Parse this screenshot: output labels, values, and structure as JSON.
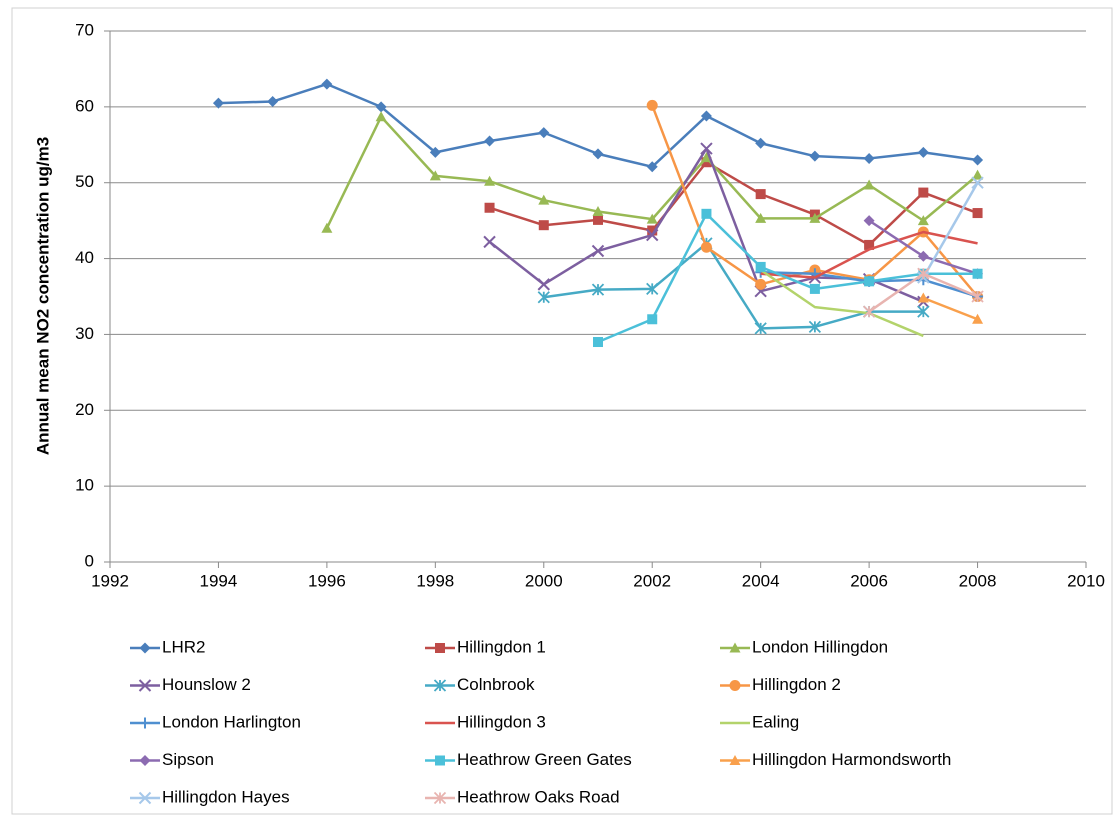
{
  "chart_data": {
    "type": "line",
    "y_label": "Annual mean NO2 concentration ug/m3",
    "x": [
      1994,
      1995,
      1996,
      1997,
      1998,
      1999,
      2000,
      2001,
      2002,
      2003,
      2004,
      2005,
      2006,
      2007,
      2008
    ],
    "xlim": [
      1992,
      2010
    ],
    "xticks": [
      1992,
      1994,
      1996,
      1998,
      2000,
      2002,
      2004,
      2006,
      2008,
      2010
    ],
    "ylim": [
      0,
      70
    ],
    "yticks": [
      0,
      10,
      20,
      30,
      40,
      50,
      60,
      70
    ],
    "grid": true,
    "legend": "bottom",
    "series": [
      {
        "name": "LHR2",
        "color": "#4a7ebb",
        "marker": "diamond",
        "values": [
          60.5,
          60.7,
          63,
          60,
          54,
          55.5,
          56.6,
          53.8,
          52.1,
          58.8,
          55.2,
          53.5,
          53.2,
          54,
          53
        ]
      },
      {
        "name": "Hillingdon 1",
        "color": "#be4b48",
        "marker": "square",
        "values": [
          null,
          null,
          null,
          null,
          null,
          46.7,
          44.4,
          45.1,
          43.7,
          52.7,
          48.5,
          45.8,
          41.8,
          48.7,
          46
        ]
      },
      {
        "name": "London Hillingdon",
        "color": "#98b954",
        "marker": "triangle",
        "values": [
          null,
          null,
          44,
          58.7,
          50.9,
          50.2,
          47.7,
          46.2,
          45.2,
          53.3,
          45.3,
          45.3,
          49.7,
          45,
          51
        ]
      },
      {
        "name": "Hounslow 2",
        "color": "#7d5fa0",
        "marker": "x",
        "values": [
          null,
          null,
          null,
          null,
          null,
          42.2,
          36.6,
          41,
          43.1,
          54.5,
          35.7,
          37.5,
          37.3,
          34.3,
          null
        ]
      },
      {
        "name": "Colnbrook",
        "color": "#46aac5",
        "marker": "star",
        "values": [
          null,
          null,
          null,
          null,
          null,
          null,
          34.9,
          35.9,
          36,
          42,
          30.8,
          31,
          33,
          33,
          null
        ]
      },
      {
        "name": "Hillingdon 2",
        "color": "#f79646",
        "marker": "circle",
        "values": [
          null,
          null,
          null,
          null,
          null,
          null,
          null,
          null,
          60.2,
          41.5,
          36.6,
          38.5,
          37.2,
          43.5,
          35
        ]
      },
      {
        "name": "London Harlington",
        "color": "#4f8fd0",
        "marker": "plus",
        "values": [
          null,
          null,
          null,
          null,
          null,
          null,
          null,
          null,
          null,
          null,
          38.2,
          38,
          37,
          37.2,
          35
        ]
      },
      {
        "name": "Hillingdon 3",
        "color": "#d9534f",
        "marker": "none",
        "values": [
          null,
          null,
          null,
          null,
          null,
          null,
          null,
          null,
          null,
          null,
          38,
          37.5,
          41.2,
          43.5,
          42
        ]
      },
      {
        "name": "Ealing",
        "color": "#b3d36b",
        "marker": "none",
        "values": [
          null,
          null,
          null,
          null,
          null,
          null,
          null,
          null,
          null,
          null,
          38.5,
          33.6,
          32.8,
          29.8,
          null
        ]
      },
      {
        "name": "Sipson",
        "color": "#8c6bb1",
        "marker": "diamond",
        "values": [
          null,
          null,
          null,
          null,
          null,
          null,
          null,
          null,
          null,
          null,
          null,
          null,
          45,
          40.3,
          38
        ]
      },
      {
        "name": "Heathrow Green Gates",
        "color": "#4bc0d9",
        "marker": "square",
        "values": [
          null,
          null,
          null,
          null,
          null,
          null,
          null,
          29,
          32,
          45.9,
          38.9,
          36,
          37,
          38,
          38
        ]
      },
      {
        "name": "Hillingdon Harmondsworth",
        "color": "#f9a04c",
        "marker": "triangle",
        "values": [
          null,
          null,
          null,
          null,
          null,
          null,
          null,
          null,
          null,
          null,
          null,
          null,
          null,
          34.8,
          32
        ]
      },
      {
        "name": "Hillingdon Hayes",
        "color": "#a6c8ea",
        "marker": "x",
        "values": [
          null,
          null,
          null,
          null,
          null,
          null,
          null,
          null,
          null,
          null,
          null,
          null,
          null,
          37.5,
          50
        ]
      },
      {
        "name": "Heathrow Oaks Road",
        "color": "#e8b4b0",
        "marker": "star",
        "values": [
          null,
          null,
          null,
          null,
          null,
          null,
          null,
          null,
          null,
          null,
          null,
          null,
          33,
          38,
          35
        ]
      }
    ]
  }
}
